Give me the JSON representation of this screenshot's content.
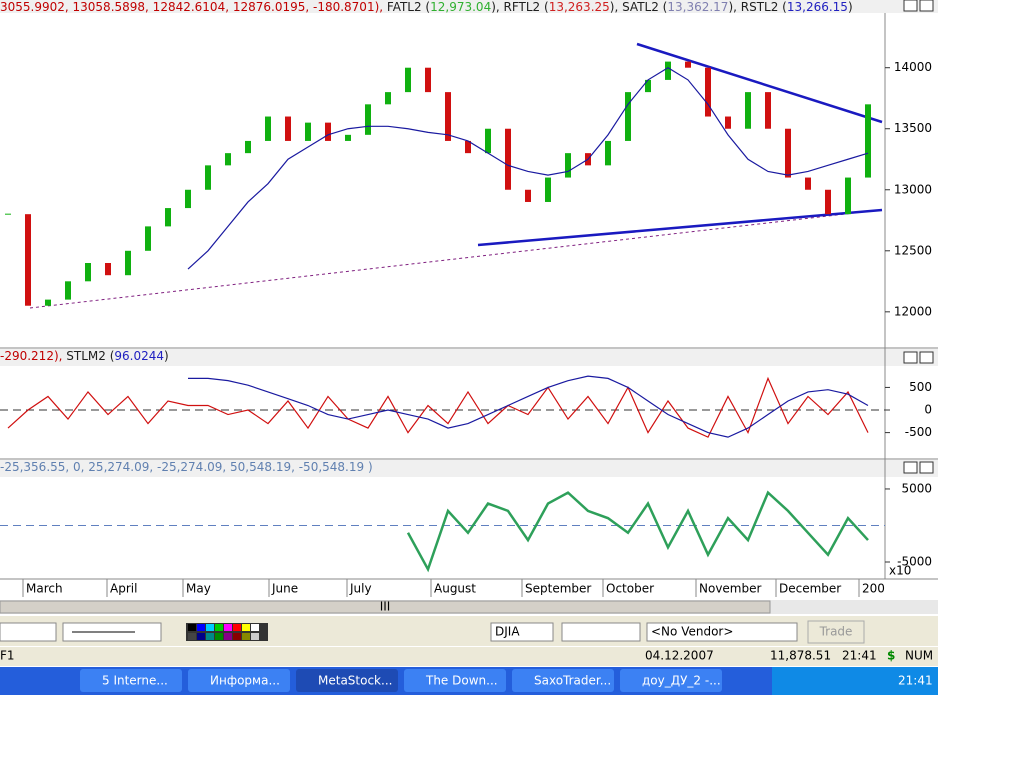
{
  "price_pane": {
    "header": [
      {
        "text": "3055.9902, 13058.5898, 12842.6104, 12876.0195, -180.8701), ",
        "color": "#c00000"
      },
      {
        "text": "FATL2 (",
        "color": "#202020"
      },
      {
        "text": "12,973.04",
        "color": "#30b030"
      },
      {
        "text": "), ",
        "color": "#202020"
      },
      {
        "text": "RFTL2 (",
        "color": "#202020"
      },
      {
        "text": "13,263.25",
        "color": "#d02020"
      },
      {
        "text": "), ",
        "color": "#202020"
      },
      {
        "text": "SATL2 (",
        "color": "#202020"
      },
      {
        "text": "13,362.17",
        "color": "#8080b0"
      },
      {
        "text": "), ",
        "color": "#202020"
      },
      {
        "text": "RSTL2 (",
        "color": "#202020"
      },
      {
        "text": "13,266.15",
        "color": "#2020c0"
      },
      {
        "text": ")",
        "color": "#202020"
      }
    ],
    "ylim": [
      11720,
      14440
    ],
    "yticks": [
      12000,
      12500,
      13000,
      13500,
      14000
    ],
    "candles": {
      "up_color": "#10b010",
      "down_color": "#d01010",
      "values": [
        12800,
        12050,
        12100,
        12250,
        12400,
        12300,
        12500,
        12700,
        12850,
        13000,
        13200,
        13300,
        13400,
        13600,
        13400,
        13550,
        13400,
        13450,
        13700,
        13800,
        14000,
        13800,
        13400,
        13300,
        13500,
        13000,
        12900,
        13100,
        13300,
        13200,
        13400,
        13800,
        13900,
        14050,
        14000,
        13600,
        13500,
        13800,
        13500,
        13100,
        13000,
        12800,
        13100,
        13700
      ]
    },
    "lines": [
      {
        "color": "#1a1aa0",
        "values": [
          null,
          null,
          null,
          null,
          null,
          null,
          null,
          null,
          null,
          12350,
          12500,
          12700,
          12900,
          13050,
          13250,
          13350,
          13450,
          13500,
          13520,
          13520,
          13500,
          13470,
          13450,
          13400,
          13300,
          13200,
          13150,
          13120,
          13150,
          13250,
          13450,
          13700,
          13900,
          14000,
          13900,
          13700,
          13450,
          13250,
          13150,
          13120,
          13150,
          13200,
          13250,
          13300
        ]
      }
    ]
  },
  "osc_pane": {
    "header": [
      {
        "text": "-290.212), ",
        "color": "#c00000"
      },
      {
        "text": "STLM2 (",
        "color": "#202020"
      },
      {
        "text": "96.0244",
        "color": "#2020c0"
      },
      {
        "text": ")",
        "color": "#202020"
      }
    ],
    "ylim": [
      -1040,
      930
    ],
    "yticks": [
      500,
      0,
      -500
    ],
    "lines": [
      {
        "color": "#d01010",
        "values": [
          -400,
          0,
          300,
          -200,
          400,
          -100,
          300,
          -300,
          200,
          100,
          100,
          -100,
          0,
          -300,
          200,
          -400,
          300,
          -200,
          -400,
          300,
          -500,
          100,
          -300,
          400,
          -300,
          100,
          -100,
          500,
          -200,
          300,
          -300,
          500,
          -500,
          200,
          -400,
          -600,
          300,
          -500,
          700,
          -300,
          300,
          -100,
          400,
          -500
        ]
      },
      {
        "color": "#1a1aa0",
        "values": [
          null,
          null,
          null,
          null,
          null,
          null,
          null,
          null,
          null,
          700,
          700,
          650,
          550,
          400,
          250,
          100,
          -100,
          -200,
          -100,
          0,
          -100,
          -200,
          -400,
          -300,
          -100,
          100,
          300,
          500,
          650,
          750,
          700,
          500,
          200,
          -100,
          -300,
          -500,
          -600,
          -400,
          -100,
          200,
          400,
          450,
          350,
          100
        ]
      }
    ]
  },
  "band_pane": {
    "header": [
      {
        "text": "-25,356.55, 0, 25,274.09, -25,274.09, 50,548.19, -50,548.19 )",
        "color": "#6080b0"
      }
    ],
    "ylim": [
      -7190,
      6500
    ],
    "yticks": [
      5000,
      -5000
    ],
    "scale_label": "x10",
    "lines": [
      {
        "color": "#2ea05a",
        "values": [
          null,
          null,
          null,
          null,
          null,
          null,
          null,
          null,
          null,
          null,
          null,
          null,
          null,
          null,
          null,
          null,
          null,
          null,
          null,
          null,
          -1000,
          -6000,
          2000,
          -1000,
          3000,
          2000,
          -2000,
          3000,
          4500,
          2000,
          1000,
          -1000,
          3000,
          -3000,
          2000,
          -4000,
          1000,
          -2000,
          4500,
          2000,
          -1000,
          -4000,
          1000,
          -2000
        ]
      }
    ]
  },
  "x_axis": {
    "labels": [
      "March",
      "April",
      "May",
      "June",
      "July",
      "August",
      "September",
      "October",
      "November",
      "December",
      "200"
    ]
  },
  "scrollbar": {
    "thumb": "III"
  },
  "toolbar": {
    "symbol": "DJIA",
    "vendor": "<No Vendor>",
    "trade": "Trade"
  },
  "status_bar": {
    "left": "F1",
    "date": "04.12.2007",
    "value": "11,878.51",
    "time": "21:41",
    "currency": "$",
    "num": "NUM"
  },
  "taskbar": {
    "buttons": [
      "5 Interne...",
      "Информа...",
      "MetaStock...",
      "The Down...",
      "SaxoTrader...",
      "доу_ДУ_2 -..."
    ],
    "clock": "21:41"
  }
}
